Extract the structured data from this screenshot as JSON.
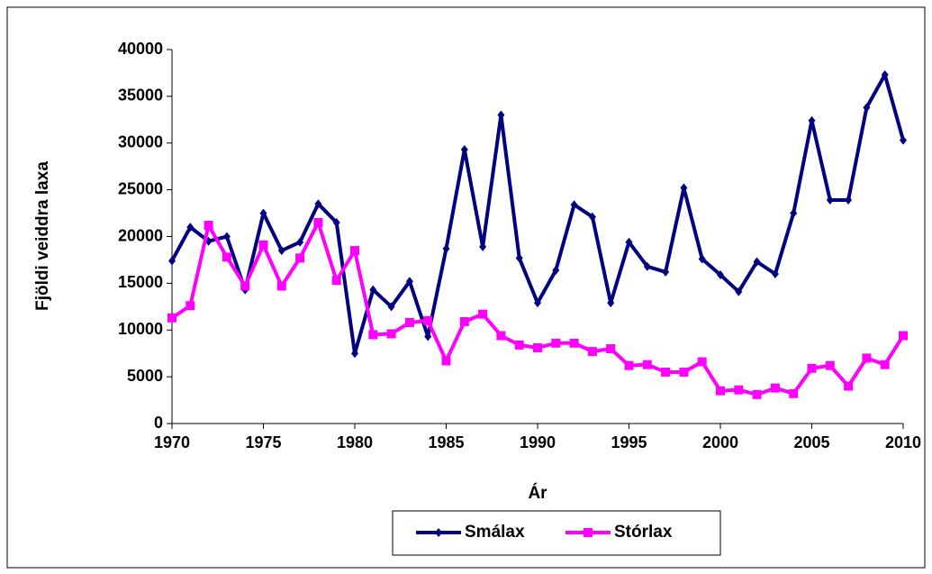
{
  "chart_data": {
    "type": "line",
    "x_label": "Ár",
    "y_label": "Fjöldi veiddra laxa",
    "x": [
      1970,
      1971,
      1972,
      1973,
      1974,
      1975,
      1976,
      1977,
      1978,
      1979,
      1980,
      1981,
      1982,
      1983,
      1984,
      1985,
      1986,
      1987,
      1988,
      1989,
      1990,
      1991,
      1992,
      1993,
      1994,
      1995,
      1996,
      1997,
      1998,
      1999,
      2000,
      2001,
      2002,
      2003,
      2004,
      2005,
      2006,
      2007,
      2008,
      2009,
      2010
    ],
    "series": [
      {
        "name": "Smálax",
        "color": "#000080",
        "marker": "diamond",
        "values": [
          17400,
          21000,
          19500,
          20000,
          14300,
          22500,
          18500,
          19400,
          23500,
          21500,
          7500,
          14300,
          12500,
          15200,
          9300,
          18700,
          29300,
          18900,
          33000,
          17700,
          12900,
          16400,
          23400,
          22100,
          12900,
          19400,
          16800,
          16200,
          25200,
          17600,
          15900,
          14100,
          17300,
          16000,
          22500,
          32400,
          23900,
          23900,
          33800,
          37300,
          30300
        ]
      },
      {
        "name": "Stórlax",
        "color": "#ff00ff",
        "marker": "square",
        "values": [
          11300,
          12600,
          21200,
          17800,
          14700,
          19100,
          14700,
          17700,
          21500,
          15300,
          18500,
          9500,
          9600,
          10800,
          11000,
          6700,
          10900,
          11700,
          9400,
          8400,
          8100,
          8600,
          8600,
          7700,
          8000,
          6200,
          6300,
          5500,
          5500,
          6600,
          3500,
          3600,
          3100,
          3800,
          3200,
          5900,
          6200,
          4000,
          7000,
          6300,
          9400
        ]
      }
    ],
    "xlim": [
      1970,
      2010
    ],
    "xticks": [
      1970,
      1975,
      1980,
      1985,
      1990,
      1995,
      2000,
      2005,
      2010
    ],
    "ylim": [
      0,
      40000
    ],
    "yticks": [
      0,
      5000,
      10000,
      15000,
      20000,
      25000,
      30000,
      35000,
      40000
    ],
    "grid": false,
    "legend": "bottom"
  }
}
